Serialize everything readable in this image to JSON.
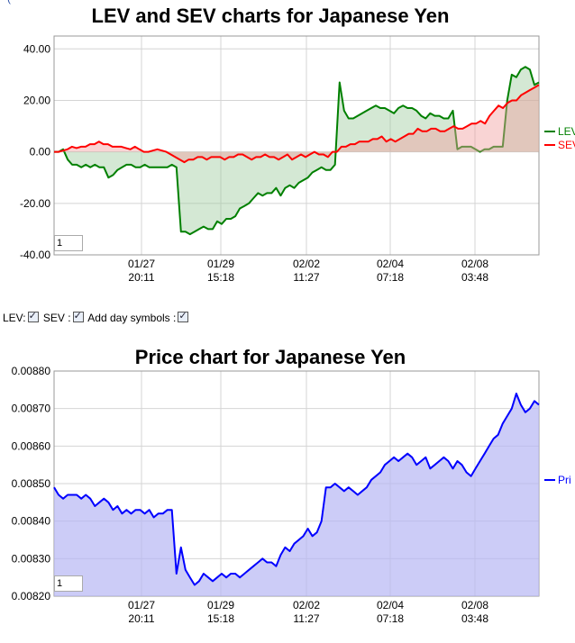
{
  "top_link_fragment": "(",
  "controls": {
    "lev_label": "LEV:",
    "sev_label": "SEV :",
    "day_label": "Add day symbols :"
  },
  "chart_data": [
    {
      "type": "area",
      "title": "LEV and SEV charts for Japanese Yen",
      "ylim": [
        -40,
        45
      ],
      "y_ticks": [
        "40.00",
        "20.00",
        "0.00",
        "-20.00",
        "-40.00"
      ],
      "x_ticks": [
        {
          "date": "01/27",
          "time": "20:11"
        },
        {
          "date": "01/29",
          "time": "15:18"
        },
        {
          "date": "02/02",
          "time": "11:27"
        },
        {
          "date": "02/04",
          "time": "07:18"
        },
        {
          "date": "02/08",
          "time": "03:48"
        }
      ],
      "legend": [
        "LEV",
        "SEV"
      ],
      "zoom_value": "1",
      "grid": true,
      "series": [
        {
          "name": "LEV",
          "color": "#008000",
          "values": [
            0,
            0,
            1,
            -3,
            -5,
            -5,
            -6,
            -5,
            -6,
            -5,
            -6,
            -6,
            -10,
            -9,
            -7,
            -6,
            -5,
            -5,
            -6,
            -6,
            -5,
            -6,
            -6,
            -6,
            -6,
            -6,
            -5,
            -6,
            -31,
            -31,
            -32,
            -31,
            -30,
            -29,
            -30,
            -30,
            -27,
            -28,
            -26,
            -26,
            -25,
            -22,
            -21,
            -20,
            -18,
            -16,
            -17,
            -16,
            -16,
            -14,
            -17,
            -14,
            -13,
            -14,
            -12,
            -11,
            -10,
            -8,
            -7,
            -6,
            -7,
            -7,
            -5,
            27,
            16,
            13,
            13,
            14,
            15,
            16,
            17,
            18,
            17,
            17,
            16,
            15,
            17,
            18,
            17,
            17,
            16,
            14,
            13,
            15,
            14,
            14,
            13,
            13,
            16,
            1,
            2,
            2,
            2,
            1,
            0,
            1,
            1,
            2,
            2,
            2,
            20,
            30,
            29,
            32,
            33,
            32,
            26,
            27
          ]
        },
        {
          "name": "SEV",
          "color": "#ff0000",
          "values": [
            0,
            0,
            0.5,
            1,
            2,
            1.5,
            2,
            2,
            3,
            3,
            4,
            3,
            3,
            2,
            2,
            2,
            1.5,
            1,
            2,
            1,
            0,
            0,
            0.5,
            1,
            0.5,
            0,
            -1,
            -2,
            -3,
            -4,
            -3,
            -3,
            -2,
            -2,
            -3,
            -2,
            -2,
            -2,
            -3,
            -2,
            -2,
            -1,
            -1,
            -2,
            -3,
            -2,
            -2,
            -1,
            -2,
            -2,
            -3,
            -2,
            -1,
            -3,
            -2,
            -1,
            -2,
            -1,
            0,
            -1,
            -1,
            -2,
            0,
            0,
            2,
            2,
            3,
            3,
            4,
            4,
            4,
            5,
            5,
            6,
            4,
            5,
            4,
            5,
            6,
            7,
            7,
            9,
            8,
            8,
            9,
            9,
            8,
            8,
            9,
            10,
            9,
            9,
            10,
            11,
            11,
            12,
            11,
            14,
            16,
            18,
            17,
            19,
            20,
            20,
            22,
            23,
            24,
            25,
            26
          ]
        }
      ]
    },
    {
      "type": "area",
      "title": "Price chart for Japanese Yen",
      "ylim": [
        0.0082,
        0.0088
      ],
      "y_ticks": [
        "0.00880",
        "0.00870",
        "0.00860",
        "0.00850",
        "0.00840",
        "0.00830",
        "0.00820"
      ],
      "x_ticks": [
        {
          "date": "01/27",
          "time": "20:11"
        },
        {
          "date": "01/29",
          "time": "15:18"
        },
        {
          "date": "02/02",
          "time": "11:27"
        },
        {
          "date": "02/04",
          "time": "07:18"
        },
        {
          "date": "02/08",
          "time": "03:48"
        }
      ],
      "legend": [
        "Pri"
      ],
      "zoom_value": "1",
      "grid": true,
      "series": [
        {
          "name": "Pri",
          "color": "#0000ff",
          "values": [
            0.00849,
            0.00847,
            0.00846,
            0.00847,
            0.00847,
            0.00847,
            0.00846,
            0.00847,
            0.00846,
            0.00844,
            0.00845,
            0.00846,
            0.00845,
            0.00843,
            0.00844,
            0.00842,
            0.00843,
            0.00842,
            0.00843,
            0.00843,
            0.00842,
            0.00843,
            0.00841,
            0.00842,
            0.00842,
            0.00843,
            0.00843,
            0.00826,
            0.00833,
            0.00827,
            0.00825,
            0.00823,
            0.00824,
            0.00826,
            0.00825,
            0.00824,
            0.00825,
            0.00826,
            0.00825,
            0.00826,
            0.00826,
            0.00825,
            0.00826,
            0.00827,
            0.00828,
            0.00829,
            0.0083,
            0.00829,
            0.00829,
            0.00828,
            0.00831,
            0.00833,
            0.00832,
            0.00834,
            0.00835,
            0.00836,
            0.00838,
            0.00836,
            0.00837,
            0.0084,
            0.00849,
            0.00849,
            0.0085,
            0.00849,
            0.00848,
            0.00849,
            0.00848,
            0.00847,
            0.00848,
            0.00849,
            0.00851,
            0.00852,
            0.00853,
            0.00855,
            0.00856,
            0.00857,
            0.00856,
            0.00857,
            0.00858,
            0.00857,
            0.00855,
            0.00856,
            0.00857,
            0.00854,
            0.00855,
            0.00856,
            0.00857,
            0.00856,
            0.00854,
            0.00856,
            0.00855,
            0.00853,
            0.00852,
            0.00854,
            0.00856,
            0.00858,
            0.0086,
            0.00862,
            0.00863,
            0.00866,
            0.00868,
            0.0087,
            0.00874,
            0.00871,
            0.00869,
            0.0087,
            0.00872,
            0.00871
          ]
        }
      ]
    }
  ]
}
